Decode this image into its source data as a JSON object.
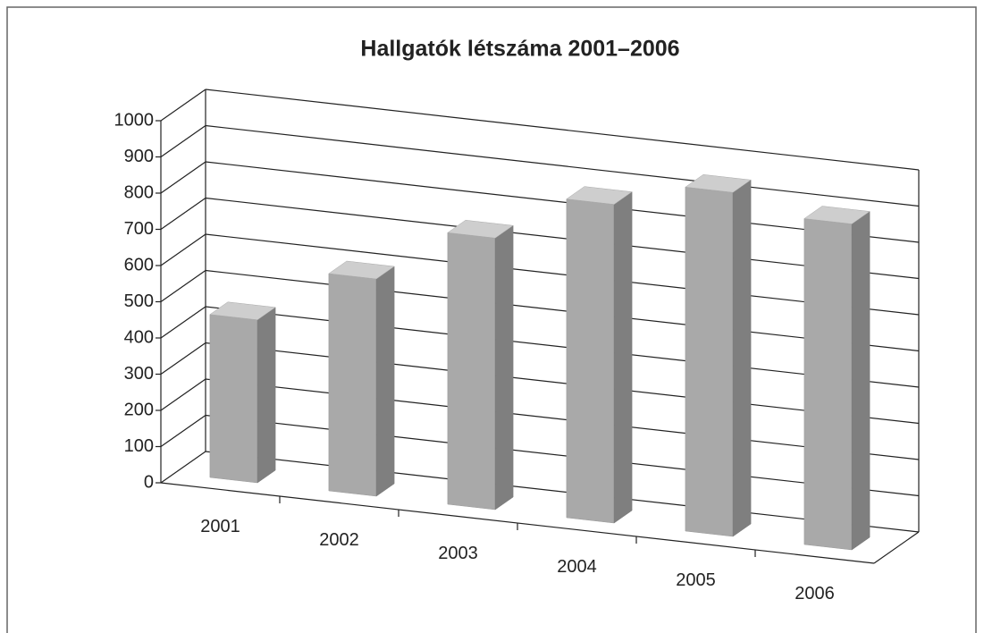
{
  "chart_data": {
    "type": "bar3d",
    "title": "Hallgatók létszáma 2001–2006",
    "categories": [
      "2001",
      "2002",
      "2003",
      "2004",
      "2005",
      "2006"
    ],
    "values": [
      450,
      600,
      750,
      880,
      950,
      900
    ],
    "color": "#a9a9a9",
    "ylim": [
      0,
      1000
    ],
    "yticks": [
      0,
      100,
      200,
      300,
      400,
      500,
      600,
      700,
      800,
      900,
      1000
    ],
    "grid": true
  }
}
